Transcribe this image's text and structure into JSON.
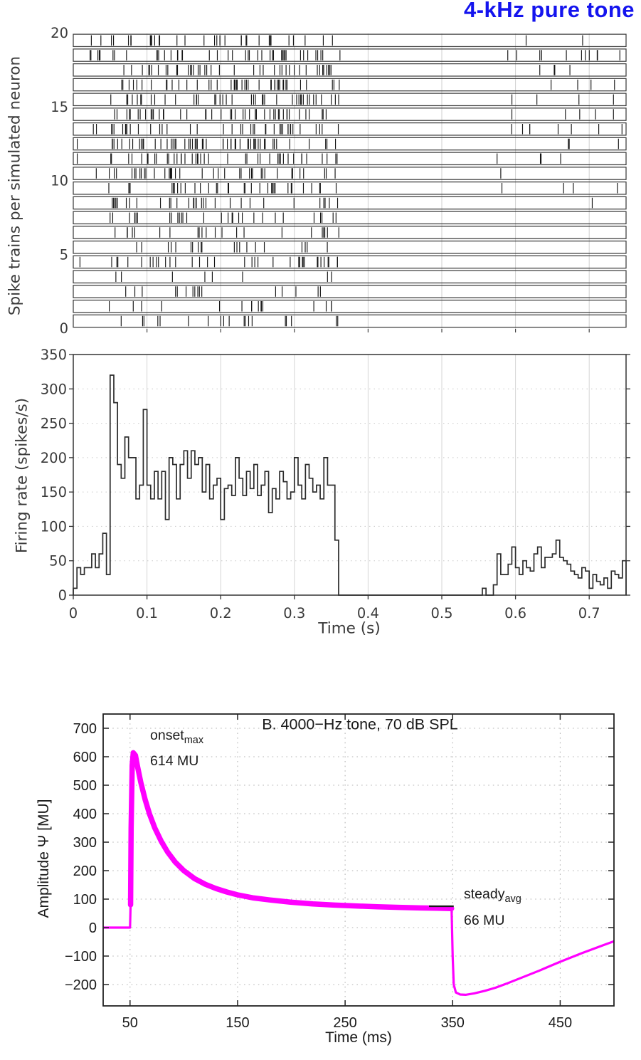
{
  "figure": {
    "title": "4-kHz pure tone",
    "title_color": "#1414ee"
  },
  "chart_data": [
    {
      "type": "raster",
      "ylabel": "Spike trains per simulated neuron",
      "xlim": [
        0,
        0.75
      ],
      "xgrid": [
        0.1,
        0.2,
        0.3,
        0.4,
        0.5,
        0.6,
        0.7
      ],
      "yticks": [
        0,
        5,
        10,
        15,
        20
      ],
      "n_trains": 20,
      "stimulus": {
        "onset_s": 0.048,
        "offset_s": 0.362,
        "spont_resume_s": 0.57
      },
      "trains": [
        {
          "neuron": 20,
          "pre_spont_hz": 40,
          "driven_hz": 105,
          "post_spont_hz": 30
        },
        {
          "neuron": 19,
          "pre_spont_hz": 45,
          "driven_hz": 150,
          "post_spont_hz": 35
        },
        {
          "neuron": 18,
          "pre_spont_hz": 35,
          "driven_hz": 130,
          "post_spont_hz": 30
        },
        {
          "neuron": 17,
          "pre_spont_hz": 30,
          "driven_hz": 120,
          "post_spont_hz": 28
        },
        {
          "neuron": 16,
          "pre_spont_hz": 40,
          "driven_hz": 150,
          "post_spont_hz": 30
        },
        {
          "neuron": 15,
          "pre_spont_hz": 45,
          "driven_hz": 145,
          "post_spont_hz": 25
        },
        {
          "neuron": 14,
          "pre_spont_hz": 25,
          "driven_hz": 105,
          "post_spont_hz": 22
        },
        {
          "neuron": 13,
          "pre_spont_hz": 35,
          "driven_hz": 150,
          "post_spont_hz": 20
        },
        {
          "neuron": 12,
          "pre_spont_hz": 20,
          "driven_hz": 140,
          "post_spont_hz": 25
        },
        {
          "neuron": 11,
          "pre_spont_hz": 15,
          "driven_hz": 135,
          "post_spont_hz": 28
        },
        {
          "neuron": 10,
          "pre_spont_hz": 12,
          "driven_hz": 125,
          "post_spont_hz": 20
        },
        {
          "neuron": 9,
          "pre_spont_hz": 10,
          "driven_hz": 115,
          "post_spont_hz": 18
        },
        {
          "neuron": 8,
          "pre_spont_hz": 0,
          "driven_hz": 95,
          "post_spont_hz": 0
        },
        {
          "neuron": 7,
          "pre_spont_hz": 8,
          "driven_hz": 60,
          "post_spont_hz": 0
        },
        {
          "neuron": 6,
          "pre_spont_hz": 0,
          "driven_hz": 75,
          "post_spont_hz": 0
        },
        {
          "neuron": 5,
          "pre_spont_hz": 10,
          "driven_hz": 85,
          "post_spont_hz": 0
        },
        {
          "neuron": 4,
          "pre_spont_hz": 0,
          "driven_hz": 40,
          "post_spont_hz": 0
        },
        {
          "neuron": 3,
          "pre_spont_hz": 0,
          "driven_hz": 45,
          "post_spont_hz": 0
        },
        {
          "neuron": 2,
          "pre_spont_hz": 0,
          "driven_hz": 50,
          "post_spont_hz": 0
        },
        {
          "neuron": 1,
          "pre_spont_hz": 0,
          "driven_hz": 48,
          "post_spont_hz": 0
        }
      ]
    },
    {
      "type": "histogram-step",
      "ylabel": "Firing rate (spikes/s)",
      "xlabel": "Time (s)",
      "xlim": [
        0,
        0.75
      ],
      "ylim": [
        0,
        350
      ],
      "xticks": [
        0,
        0.1,
        0.2,
        0.3,
        0.4,
        0.5,
        0.6,
        0.7
      ],
      "yticks": [
        0,
        50,
        100,
        150,
        200,
        250,
        300,
        350
      ],
      "bin_width_s": 0.005,
      "values": [
        10,
        40,
        30,
        40,
        40,
        60,
        40,
        60,
        90,
        30,
        320,
        280,
        190,
        170,
        230,
        200,
        200,
        140,
        160,
        270,
        160,
        140,
        180,
        140,
        180,
        110,
        200,
        190,
        140,
        190,
        210,
        170,
        210,
        190,
        200,
        150,
        190,
        140,
        160,
        170,
        110,
        155,
        160,
        145,
        200,
        170,
        145,
        180,
        155,
        190,
        145,
        160,
        180,
        120,
        155,
        140,
        180,
        165,
        140,
        150,
        200,
        160,
        140,
        190,
        170,
        150,
        160,
        140,
        200,
        160,
        160,
        80,
        0,
        0,
        0,
        0,
        0,
        0,
        0,
        0,
        0,
        0,
        0,
        0,
        0,
        0,
        0,
        0,
        0,
        0,
        0,
        0,
        0,
        0,
        0,
        0,
        0,
        0,
        0,
        0,
        0,
        0,
        0,
        0,
        0,
        0,
        0,
        0,
        0,
        0,
        0,
        10,
        0,
        0,
        15,
        60,
        30,
        30,
        45,
        70,
        40,
        30,
        50,
        40,
        35,
        60,
        70,
        40,
        55,
        55,
        60,
        80,
        55,
        50,
        45,
        35,
        30,
        25,
        40,
        35,
        10,
        30,
        20,
        15,
        25,
        10,
        35,
        30,
        25,
        50
      ]
    },
    {
      "type": "line",
      "title": "B. 4000−Hz tone, 70 dB SPL",
      "xlabel": "Time (ms)",
      "ylabel": "Amplitude Ψ [MU]",
      "line_color": "#ff00ff",
      "xlim": [
        25,
        500
      ],
      "ylim": [
        -275,
        750
      ],
      "xticks": [
        50,
        150,
        250,
        350,
        450
      ],
      "yticks": [
        -200,
        -100,
        0,
        100,
        200,
        300,
        400,
        500,
        600,
        700
      ],
      "points": [
        [
          25,
          0
        ],
        [
          50,
          0
        ],
        [
          50.5,
          80
        ],
        [
          51,
          350
        ],
        [
          52,
          570
        ],
        [
          53,
          614
        ],
        [
          55,
          605
        ],
        [
          57,
          565
        ],
        [
          60,
          510
        ],
        [
          64,
          450
        ],
        [
          68,
          400
        ],
        [
          73,
          350
        ],
        [
          79,
          303
        ],
        [
          85,
          265
        ],
        [
          92,
          230
        ],
        [
          100,
          200
        ],
        [
          110,
          172
        ],
        [
          120,
          152
        ],
        [
          130,
          137
        ],
        [
          140,
          125
        ],
        [
          150,
          115
        ],
        [
          165,
          104
        ],
        [
          180,
          97
        ],
        [
          200,
          89
        ],
        [
          220,
          83
        ],
        [
          240,
          79
        ],
        [
          260,
          76
        ],
        [
          280,
          73
        ],
        [
          300,
          71
        ],
        [
          320,
          69
        ],
        [
          335,
          68
        ],
        [
          349,
          67
        ],
        [
          350,
          -100
        ],
        [
          351,
          -200
        ],
        [
          353,
          -228
        ],
        [
          357,
          -235
        ],
        [
          362,
          -236
        ],
        [
          370,
          -231
        ],
        [
          380,
          -222
        ],
        [
          390,
          -211
        ],
        [
          400,
          -197
        ],
        [
          410,
          -182
        ],
        [
          420,
          -167
        ],
        [
          430,
          -152
        ],
        [
          440,
          -136
        ],
        [
          450,
          -120
        ],
        [
          460,
          -105
        ],
        [
          470,
          -90
        ],
        [
          480,
          -76
        ],
        [
          490,
          -62
        ],
        [
          500,
          -48
        ]
      ],
      "annotations": [
        {
          "label": "onset",
          "sub": "max",
          "value": "614 MU"
        },
        {
          "label": "steady",
          "sub": "avg",
          "value": "66 MU"
        }
      ],
      "steady_marker": {
        "t1_ms": 328,
        "t2_ms": 351,
        "mu": 75
      }
    }
  ]
}
